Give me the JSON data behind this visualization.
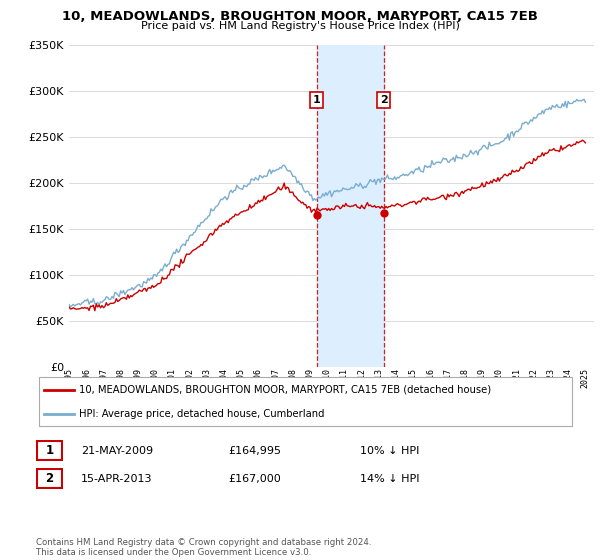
{
  "title_line1": "10, MEADOWLANDS, BROUGHTON MOOR, MARYPORT, CA15 7EB",
  "title_line2": "Price paid vs. HM Land Registry's House Price Index (HPI)",
  "legend_label_red": "10, MEADOWLANDS, BROUGHTON MOOR, MARYPORT, CA15 7EB (detached house)",
  "legend_label_blue": "HPI: Average price, detached house, Cumberland",
  "sale1_date": "21-MAY-2009",
  "sale1_price": "£164,995",
  "sale1_hpi": "10% ↓ HPI",
  "sale2_date": "15-APR-2013",
  "sale2_price": "£167,000",
  "sale2_hpi": "14% ↓ HPI",
  "footnote": "Contains HM Land Registry data © Crown copyright and database right 2024.\nThis data is licensed under the Open Government Licence v3.0.",
  "sale1_year": 2009.38,
  "sale2_year": 2013.28,
  "sale1_price_val": 164995,
  "sale2_price_val": 167000,
  "color_red": "#cc0000",
  "color_blue": "#7aadcf",
  "color_highlight": "#ddeeff",
  "ylim_min": 0,
  "ylim_max": 350000,
  "xlim_min": 1995,
  "xlim_max": 2025.5
}
